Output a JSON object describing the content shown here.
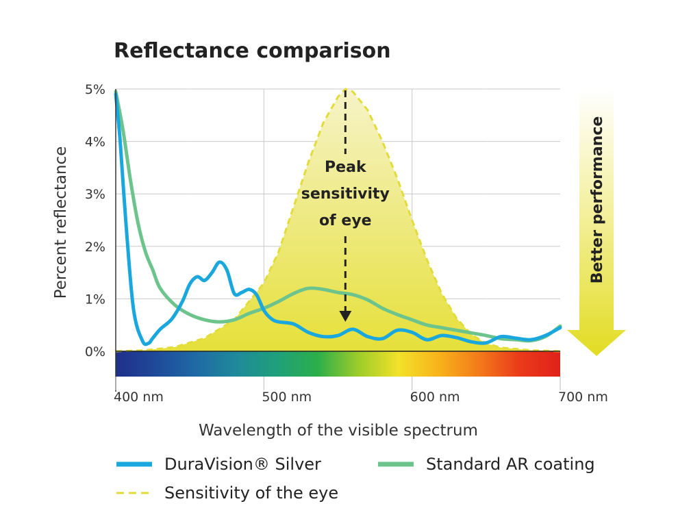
{
  "chart_data": {
    "type": "line",
    "title": "Reflectance comparison",
    "xlabel": "Wavelength of the visible spectrum",
    "ylabel": "Percent reflectance",
    "xlim": [
      400,
      700
    ],
    "ylim": [
      0,
      5
    ],
    "x_ticks": [
      "400 nm",
      "500 nm",
      "600 nm",
      "700 nm"
    ],
    "y_ticks": [
      "0%",
      "1%",
      "2%",
      "3%",
      "4%",
      "5%"
    ],
    "grid": true,
    "annotation": "Peak sensitivity of eye",
    "annotation_x": 555,
    "side_label": "Better performance",
    "legend": [
      {
        "label": "DuraVision® Silver",
        "color": "#1aa7dd",
        "style": "solid"
      },
      {
        "label": "Standard AR coating",
        "color": "#6cc48c",
        "style": "solid"
      },
      {
        "label": "Sensitivity of the eye",
        "color": "#e2dc3a",
        "style": "dashed"
      }
    ],
    "series": [
      {
        "name": "DuraVision® Silver",
        "color": "#1aa7dd",
        "x": [
          400,
          403,
          407,
          412,
          418,
          422,
          425,
          430,
          438,
          445,
          450,
          455,
          460,
          465,
          470,
          475,
          480,
          485,
          490,
          495,
          500,
          505,
          510,
          520,
          530,
          540,
          550,
          560,
          570,
          580,
          590,
          600,
          610,
          620,
          630,
          640,
          650,
          660,
          670,
          680,
          690,
          700
        ],
        "values": [
          4.9,
          4.0,
          2.4,
          0.8,
          0.2,
          0.15,
          0.25,
          0.42,
          0.62,
          0.95,
          1.28,
          1.42,
          1.35,
          1.5,
          1.7,
          1.55,
          1.1,
          1.12,
          1.18,
          1.08,
          0.78,
          0.62,
          0.56,
          0.52,
          0.36,
          0.28,
          0.3,
          0.42,
          0.28,
          0.24,
          0.4,
          0.36,
          0.22,
          0.3,
          0.26,
          0.18,
          0.16,
          0.28,
          0.25,
          0.22,
          0.3,
          0.45
        ]
      },
      {
        "name": "Standard AR coating",
        "color": "#6cc48c",
        "x": [
          400,
          405,
          410,
          415,
          420,
          425,
          430,
          440,
          450,
          460,
          470,
          480,
          490,
          500,
          510,
          520,
          530,
          540,
          550,
          560,
          570,
          580,
          590,
          600,
          610,
          620,
          630,
          640,
          650,
          660,
          670,
          680,
          690,
          700
        ],
        "values": [
          4.95,
          4.2,
          3.25,
          2.45,
          1.9,
          1.55,
          1.2,
          0.88,
          0.7,
          0.6,
          0.56,
          0.6,
          0.72,
          0.82,
          0.95,
          1.1,
          1.2,
          1.18,
          1.12,
          1.08,
          0.98,
          0.82,
          0.7,
          0.6,
          0.5,
          0.45,
          0.4,
          0.35,
          0.3,
          0.24,
          0.22,
          0.2,
          0.28,
          0.48
        ]
      },
      {
        "name": "Sensitivity of the eye",
        "color": "#e2dc3a",
        "x": [
          400,
          420,
          440,
          460,
          480,
          500,
          510,
          520,
          530,
          540,
          550,
          555,
          560,
          570,
          580,
          590,
          600,
          610,
          620,
          630,
          640,
          650,
          660,
          680,
          700
        ],
        "values": [
          0.0,
          0.02,
          0.08,
          0.25,
          0.6,
          1.3,
          1.9,
          2.75,
          3.6,
          4.35,
          4.85,
          5.0,
          4.95,
          4.6,
          4.0,
          3.3,
          2.5,
          1.75,
          1.1,
          0.63,
          0.32,
          0.15,
          0.07,
          0.02,
          0.0
        ]
      }
    ],
    "spectrum_colors": [
      "#1f2f8a",
      "#1f4a9a",
      "#1f6aa5",
      "#1f8a9a",
      "#1fa07a",
      "#2cae4a",
      "#9ccc2a",
      "#f2e22a",
      "#f8b21a",
      "#f27a1a",
      "#ea3a1a",
      "#e0221a"
    ]
  }
}
